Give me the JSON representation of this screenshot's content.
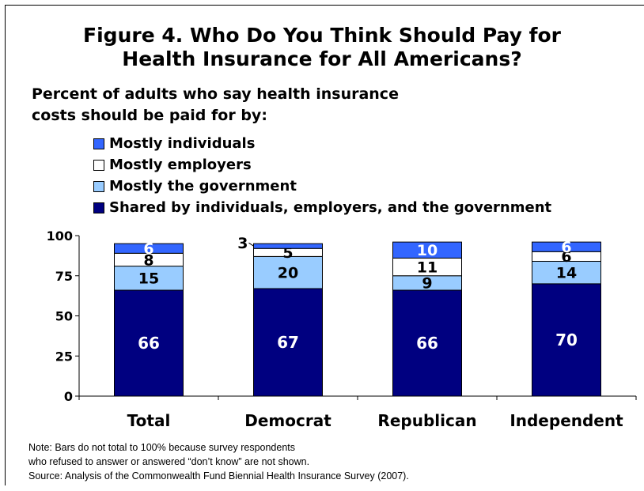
{
  "title_line1": "Figure 4. Who Do You Think Should Pay for",
  "title_line2": "Health Insurance for All Americans?",
  "subtitle_line1": "Percent of adults who say health insurance",
  "subtitle_line2": "costs should be paid for by:",
  "notes": {
    "line1": "Note: Bars do not total to 100% because survey respondents",
    "line2": "who refused to answer or answered “don’t know” are not shown.",
    "line3": "Source: Analysis of the Commonwealth Fund Biennial Health Insurance Survey (2007)."
  },
  "colors": {
    "shared": "#000080",
    "government": "#99CCFF",
    "employers": "#FFFFFF",
    "individuals": "#3366FF"
  },
  "chart_data": {
    "type": "bar",
    "stacked": true,
    "categories": [
      "Total",
      "Democrat",
      "Republican",
      "Independent"
    ],
    "series": [
      {
        "name": "Shared by individuals, employers, and the government",
        "key": "shared",
        "values": [
          66,
          67,
          66,
          70
        ]
      },
      {
        "name": "Mostly the government",
        "key": "government",
        "values": [
          15,
          20,
          9,
          14
        ]
      },
      {
        "name": "Mostly employers",
        "key": "employers",
        "values": [
          8,
          5,
          11,
          6
        ]
      },
      {
        "name": "Mostly individuals",
        "key": "individuals",
        "values": [
          6,
          3,
          10,
          6
        ]
      }
    ],
    "legend_order": [
      "individuals",
      "employers",
      "government",
      "shared"
    ],
    "ylim": [
      0,
      100
    ],
    "yticks": [
      0,
      25,
      50,
      75,
      100
    ],
    "grid": false,
    "legend_position": "top-left"
  }
}
